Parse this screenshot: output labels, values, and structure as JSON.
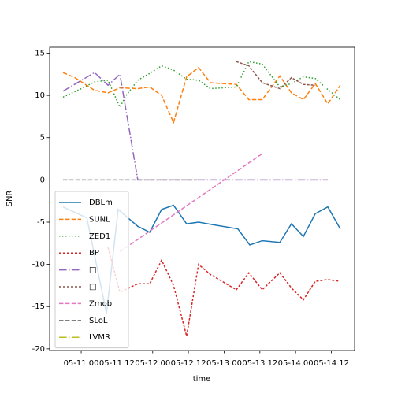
{
  "chart_data": {
    "type": "line",
    "xlabel": "time",
    "ylabel": "SNR",
    "xlim": [
      -10.6,
      91.8
    ],
    "ylim": [
      -20.2,
      15.7
    ],
    "xticks": [
      {
        "value": 0,
        "label": "05-11 00"
      },
      {
        "value": 12,
        "label": "05-11 12"
      },
      {
        "value": 24,
        "label": "05-12 00"
      },
      {
        "value": 36,
        "label": "05-12 12"
      },
      {
        "value": 48,
        "label": "05-13 00"
      },
      {
        "value": 60,
        "label": "05-13 12"
      },
      {
        "value": 72,
        "label": "05-14 00"
      },
      {
        "value": 84,
        "label": "05-14 12"
      }
    ],
    "yticks": [
      -20,
      -15,
      -10,
      -5,
      0,
      5,
      10,
      15
    ],
    "legend": "upper left",
    "series": [
      {
        "name": "DBLm",
        "color": "#1f77b4",
        "dash": "solid",
        "x": [
          -6.1,
          1.9,
          8.5,
          12.4,
          19,
          23,
          27,
          31,
          35.4,
          39.4,
          44.2,
          52.6,
          56.6,
          60.8,
          66.7,
          70.6,
          74.6,
          78.6,
          82.8,
          87
        ],
        "values": [
          -3.2,
          -4.5,
          -15.8,
          -3.5,
          -5.5,
          -6.2,
          -3.5,
          -3,
          -5.2,
          -5,
          -5.3,
          -5.8,
          -7.7,
          -7.2,
          -7.4,
          -5.2,
          -6.7,
          -4,
          -3.2,
          -5.8
        ]
      },
      {
        "name": "SUNL",
        "color": "#ff7f0e",
        "dash": "dashed",
        "x": [
          -6.1,
          -2.1,
          4.5,
          9,
          13,
          19,
          23,
          27,
          31,
          35.4,
          39.4,
          43.4,
          52.1,
          56.3,
          60.8,
          66.7,
          70.6,
          74.6,
          78.6,
          82.8,
          87
        ],
        "values": [
          12.7,
          12.1,
          10.6,
          10.3,
          10.9,
          10.8,
          11,
          10,
          6.8,
          12.2,
          13.3,
          11.5,
          11.3,
          9.5,
          9.5,
          12.3,
          10.3,
          9.5,
          11.4,
          9,
          11.2
        ]
      },
      {
        "name": "ZED1",
        "color": "#2ca02c",
        "dash": "dotted",
        "x": [
          -6.1,
          0,
          4.5,
          9,
          13,
          15.1,
          19,
          23,
          27,
          31,
          35.4,
          39.4,
          43.4,
          52.1,
          56.3,
          60.8,
          66.7,
          70.6,
          74.6,
          78.6,
          82.8,
          87
        ],
        "values": [
          9.8,
          10.8,
          11.6,
          11.8,
          8.6,
          10,
          11.8,
          12.6,
          13.5,
          13,
          11.9,
          11.8,
          10.8,
          11,
          14,
          13.7,
          11,
          11.4,
          12.2,
          12,
          10.7,
          9.5
        ]
      },
      {
        "name": "BP",
        "color": "#d62728",
        "dash": "densedash",
        "x": [
          9,
          13,
          19,
          23,
          27,
          31,
          35.4,
          39.4,
          43.4,
          52.1,
          56.3,
          60.8,
          66.7,
          70.6,
          74.6,
          78.6,
          82.8,
          87
        ],
        "values": [
          -8,
          -13.3,
          -12.3,
          -12.3,
          -9.5,
          -12.5,
          -18.5,
          -10,
          -11.2,
          -13,
          -11,
          -13,
          -11,
          -12.8,
          -14.2,
          -12,
          -11.8,
          -12
        ]
      },
      {
        "name": "□",
        "color": "#9467bd",
        "dash": "dashdot",
        "x": [
          -6.1,
          4.5,
          9,
          13,
          19,
          35.4,
          60.8,
          82.8
        ],
        "values": [
          10.5,
          12.7,
          11.2,
          12.5,
          0,
          0,
          0,
          0
        ]
      },
      {
        "name": "□",
        "color": "#8c564b",
        "dash": "densedash",
        "x": [
          52.1,
          56.3,
          60.8,
          66.7,
          70.6,
          74.6,
          78.6
        ],
        "values": [
          14,
          13.5,
          11.5,
          10.8,
          12.1,
          11.3,
          11.2
        ]
      },
      {
        "name": "Zmob",
        "color": "#e377c2",
        "dash": "dashed",
        "x": [
          13,
          60.8
        ],
        "values": [
          -8.5,
          3.1
        ]
      },
      {
        "name": "SLoL",
        "color": "#7f7f7f",
        "dash": "dashed",
        "x": [
          -6.1,
          38.9
        ],
        "values": [
          0,
          0
        ]
      },
      {
        "name": "LVMR",
        "color": "#bcbd22",
        "dash": "dashdot",
        "x": [],
        "values": []
      }
    ]
  }
}
